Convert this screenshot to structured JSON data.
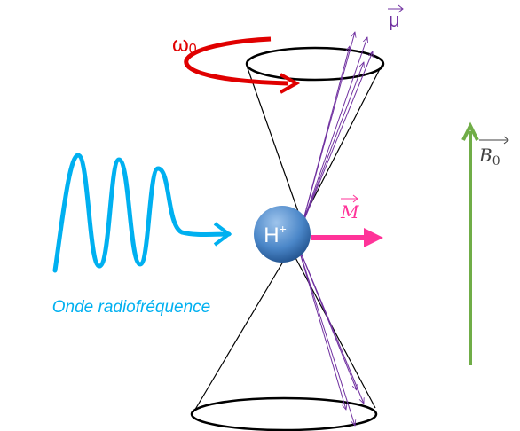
{
  "labels": {
    "omega": {
      "symbol": "ω",
      "subscript": "0"
    },
    "mu": "μ",
    "magnetization": "M",
    "field": {
      "symbol": "B",
      "subscript": "0"
    },
    "proton": {
      "symbol": "H",
      "superscript": "+"
    },
    "wave": "Onde radiofréquence"
  }
}
